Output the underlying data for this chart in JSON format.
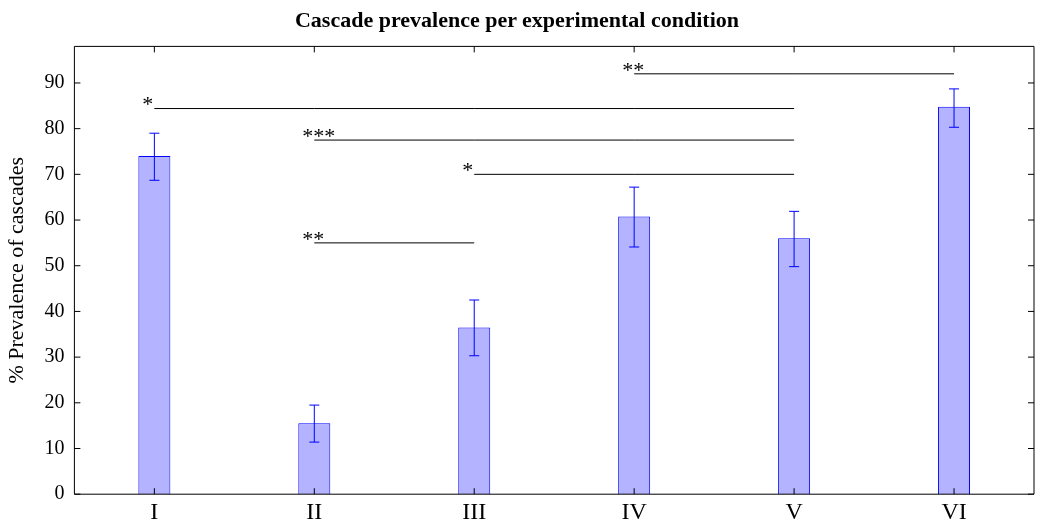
{
  "chart_data": {
    "type": "bar",
    "title": "Cascade prevalence per experimental condition",
    "ylabel": "% Prevalence of cascades",
    "categories": [
      "I",
      "II",
      "III",
      "IV",
      "V",
      "VI"
    ],
    "series": [
      {
        "color": "#b3b3ff",
        "values": [
          74,
          15.5,
          36.5,
          60.8,
          56,
          84.8
        ],
        "errors": [
          [
            68.7,
            79
          ],
          [
            11.4,
            19.5
          ],
          [
            30.3,
            42.5
          ],
          [
            54.1,
            67.2
          ],
          [
            49.8,
            61.9
          ],
          [
            80.3,
            88.7
          ]
        ]
      },
      {
        "type": "line",
        "color": "#000000",
        "values": [
          84.4,
          84.4,
          84.4,
          84.4,
          84.4,
          null
        ]
      },
      {
        "type": "line",
        "color": "#000000",
        "values": [
          null,
          77.5,
          77.5,
          77.5,
          77.5,
          null
        ]
      },
      {
        "type": "line",
        "color": "#000000",
        "values": [
          null,
          null,
          70,
          70,
          70,
          null
        ]
      },
      {
        "type": "line",
        "color": "#000000",
        "values": [
          null,
          55,
          55,
          null,
          null,
          null
        ]
      },
      {
        "type": "line",
        "color": "#000000",
        "values": [
          null,
          null,
          null,
          92,
          92,
          92
        ]
      }
    ],
    "annotations": [
      {
        "text": "*",
        "x": "I",
        "y": 84.4
      },
      {
        "text": "***",
        "x": "II",
        "y": 77.5
      },
      {
        "text": "*",
        "x": "III",
        "y": 70
      },
      {
        "text": "**",
        "x": "II",
        "y": 55
      },
      {
        "text": "**",
        "x": "IV",
        "y": 92
      }
    ],
    "ylim": [
      0,
      98
    ],
    "yticks": [
      0,
      10,
      20,
      30,
      40,
      50,
      60,
      70,
      80,
      90
    ],
    "grid": false,
    "legend": false
  }
}
